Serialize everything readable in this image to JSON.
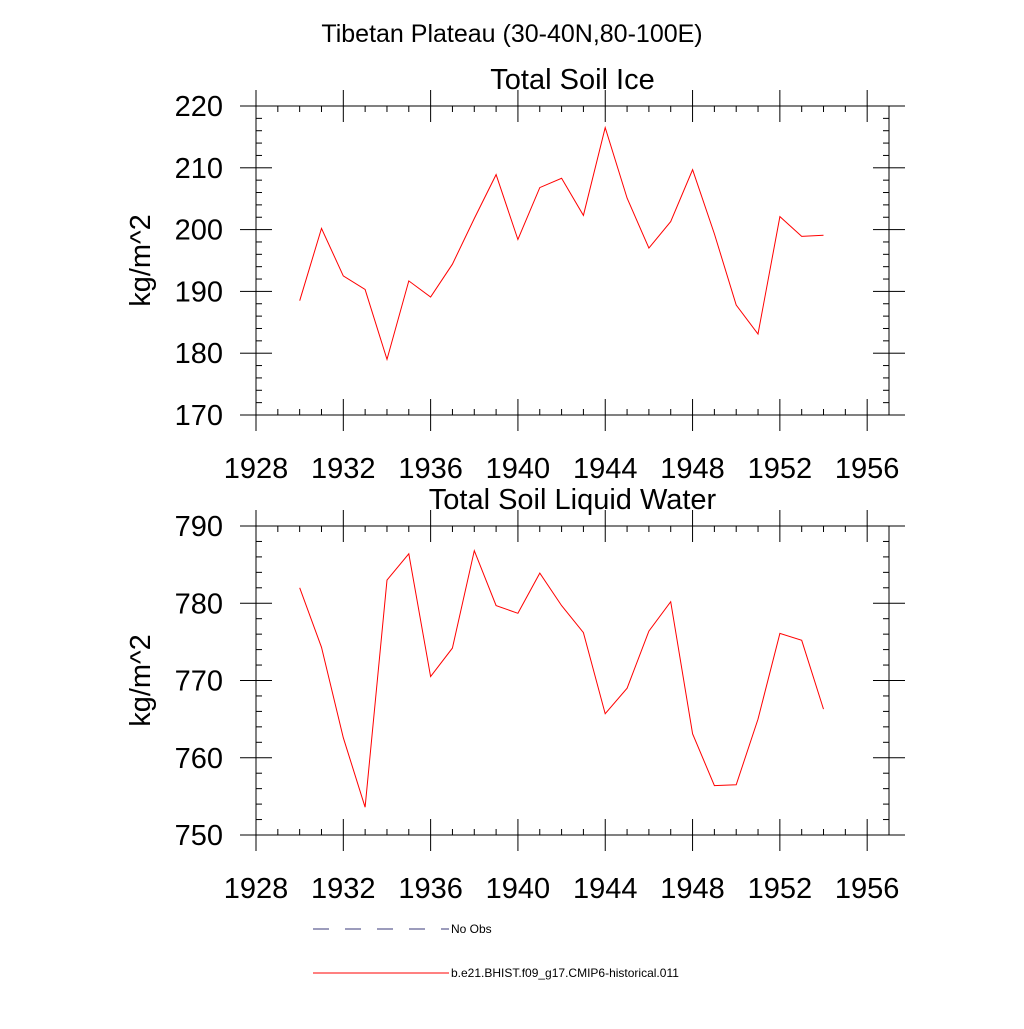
{
  "suptitle": "Tibetan Plateau (30-40N,80-100E)",
  "colors": {
    "model_line": "#ff0000",
    "obs_line": "#3a3a7a",
    "axes": "#000000"
  },
  "legend": [
    {
      "label": "No Obs",
      "style": "dashed",
      "color": "#3a3a7a"
    },
    {
      "label": "b.e21.BHIST.f09_g17.CMIP6-historical.011",
      "style": "solid",
      "color": "#ff0000"
    }
  ],
  "chart_data": [
    {
      "type": "line",
      "title": "Total Soil Ice",
      "xlabel": "",
      "ylabel": "kg/m^2",
      "xlim": [
        1928,
        1957
      ],
      "ylim": [
        170,
        220
      ],
      "xticks": [
        1928,
        1932,
        1936,
        1940,
        1944,
        1948,
        1952,
        1956
      ],
      "yticks": [
        170,
        180,
        190,
        200,
        210,
        220
      ],
      "grid": false,
      "series": [
        {
          "name": "b.e21.BHIST.f09_g17.CMIP6-historical.011",
          "x": [
            1930,
            1931,
            1932,
            1933,
            1934,
            1935,
            1936,
            1937,
            1938,
            1939,
            1940,
            1941,
            1942,
            1943,
            1944,
            1945,
            1946,
            1947,
            1948,
            1949,
            1950,
            1951,
            1952,
            1953,
            1954
          ],
          "y": [
            188.5,
            200.2,
            192.5,
            190.3,
            179.0,
            191.7,
            189.1,
            194.4,
            201.8,
            208.9,
            198.4,
            206.8,
            208.3,
            202.3,
            216.5,
            205.1,
            197.0,
            201.3,
            209.7,
            199.3,
            187.8,
            183.1,
            202.1,
            198.9,
            199.1
          ]
        }
      ]
    },
    {
      "type": "line",
      "title": "Total Soil Liquid Water",
      "xlabel": "",
      "ylabel": "kg/m^2",
      "xlim": [
        1928,
        1957
      ],
      "ylim": [
        750,
        790
      ],
      "xticks": [
        1928,
        1932,
        1936,
        1940,
        1944,
        1948,
        1952,
        1956
      ],
      "yticks": [
        750,
        760,
        770,
        780,
        790
      ],
      "grid": false,
      "series": [
        {
          "name": "b.e21.BHIST.f09_g17.CMIP6-historical.011",
          "x": [
            1930,
            1931,
            1932,
            1933,
            1934,
            1935,
            1936,
            1937,
            1938,
            1939,
            1940,
            1941,
            1942,
            1943,
            1944,
            1945,
            1946,
            1947,
            1948,
            1949,
            1950,
            1951,
            1952,
            1953,
            1954
          ],
          "y": [
            782.0,
            774.3,
            762.6,
            753.6,
            783.0,
            786.4,
            770.5,
            774.2,
            786.8,
            779.7,
            778.7,
            783.9,
            779.7,
            776.2,
            765.7,
            769.0,
            776.4,
            780.2,
            763.1,
            756.4,
            756.5,
            765.0,
            776.1,
            775.2,
            766.3
          ]
        }
      ]
    }
  ]
}
